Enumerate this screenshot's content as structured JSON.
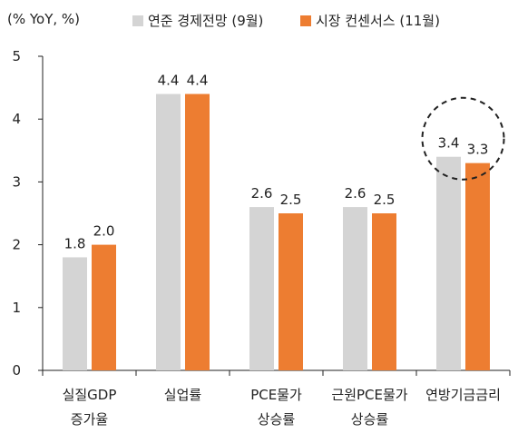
{
  "chart_data": {
    "type": "bar",
    "unit_label": "(% YoY, %)",
    "categories": [
      [
        "실질GDP",
        "증가율"
      ],
      [
        "실업률"
      ],
      [
        "PCE물가",
        "상승률"
      ],
      [
        "근원PCE물가",
        "상승률"
      ],
      [
        "연방기금금리"
      ]
    ],
    "series": [
      {
        "name": "연준 경제전망 (9월)",
        "values": [
          1.8,
          4.4,
          2.6,
          2.6,
          3.4
        ],
        "color": "#d4d4d4"
      },
      {
        "name": "시장 컨센서스 (11월)",
        "values": [
          2.0,
          4.4,
          2.5,
          2.5,
          3.3
        ],
        "color": "#ed7d31"
      }
    ],
    "ylim": [
      0,
      5
    ],
    "yticks": [
      0,
      1,
      2,
      3,
      4,
      5
    ],
    "grid": false,
    "legend_position": "top",
    "highlight": {
      "category_index": 4,
      "style": "dashed-circle"
    }
  }
}
